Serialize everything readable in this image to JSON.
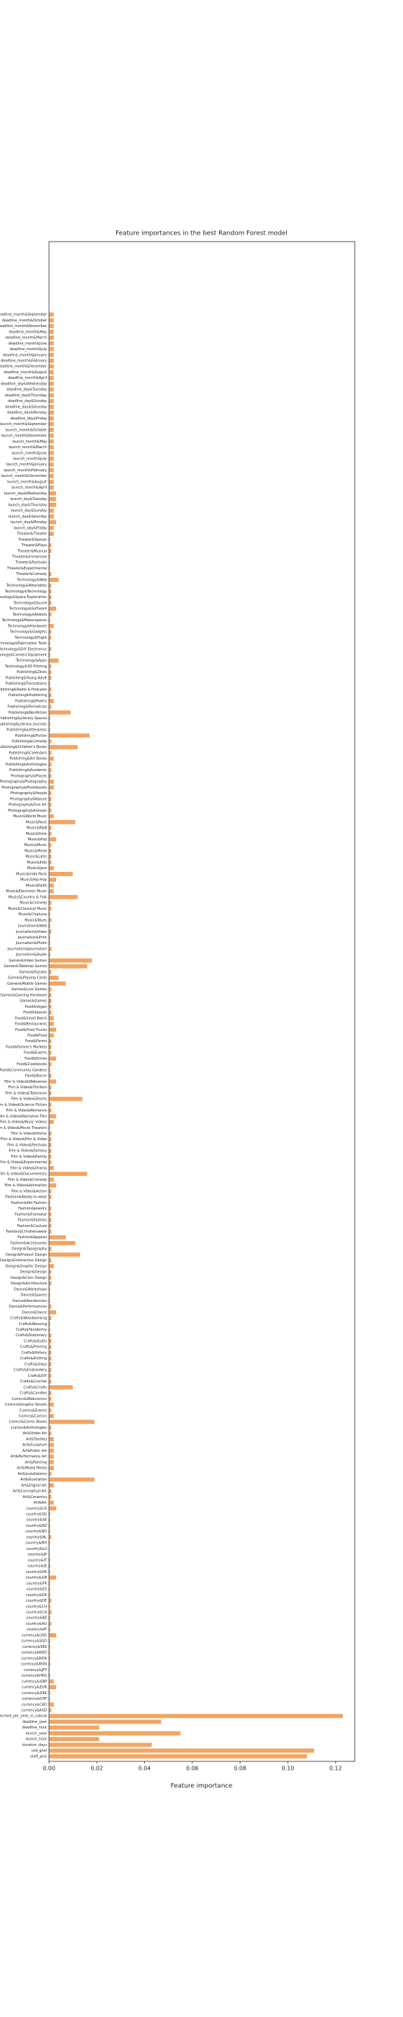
{
  "chart_data": {
    "type": "barh",
    "title": "Feature importances in the best Random Forest model",
    "xlabel": "Feature importance",
    "color": "#f4a460",
    "xlim": [
      0,
      0.128
    ],
    "xticks": [
      {
        "value": 0,
        "label": "0.00"
      },
      0.02,
      0.04,
      0.06,
      0.08,
      {
        "value": 0.1,
        "label": "0.10"
      },
      0.12
    ],
    "categories": [
      "deadline_month&September",
      "deadline_month&October",
      "deadline_month&November",
      "deadline_month&May",
      "deadline_month&March",
      "deadline_month&June",
      "deadline_month&July",
      "deadline_month&January",
      "deadline_month&February",
      "deadline_month&December",
      "deadline_month&August",
      "deadline_month&April",
      "deadline_day&Wednesday",
      "deadline_day&Tuesday",
      "deadline_day&Thursday",
      "deadline_day&Sunday",
      "deadline_day&Saturday",
      "deadline_day&Monday",
      "deadline_day&Friday",
      "launch_month&September",
      "launch_month&October",
      "launch_month&November",
      "launch_month&May",
      "launch_month&March",
      "launch_month&June",
      "launch_month&July",
      "launch_month&January",
      "launch_month&February",
      "launch_month&December",
      "launch_month&August",
      "launch_month&April",
      "launch_day&Wednesday",
      "launch_day&Tuesday",
      "launch_day&Thursday",
      "launch_day&Sunday",
      "launch_day&Saturday",
      "launch_day&Monday",
      "launch_day&Friday",
      "Theater&Theater",
      "Theater&Spaces",
      "Theater&Plays",
      "Theater&Musical",
      "Theater&Immersive",
      "Theater&Festivals",
      "Theater&Experimental",
      "Theater&Comedy",
      "Technology&Web",
      "Technology&Wearables",
      "Technology&Technology",
      "Technology&Space Exploration",
      "Technology&Sound",
      "Technology&Software",
      "Technology&Robots",
      "Technology&Makerspaces",
      "Technology&Hardware",
      "Technology&Gadgets",
      "Technology&Flight",
      "Technology&Fabrication Tools",
      "Technology&DIY Electronics",
      "Technology&Camera Equipment",
      "Technology&Apps",
      "Technology&3D Printing",
      "Publishing&Zines",
      "Publishing&Young Adult",
      "Publishing&Translations",
      "Publishing&Radio & Podcasts",
      "Publishing&Publishing",
      "Publishing&Poetry",
      "Publishing&Periodicals",
      "Publishing&Nonfiction",
      "Publishing&Literary Spaces",
      "Publishing&Literary Journals",
      "Publishing&Letterpress",
      "Publishing&Fiction",
      "Publishing&Comedy",
      "Publishing&Children's Books",
      "Publishing&Calendars",
      "Publishing&Art Books",
      "Publishing&Anthologies",
      "Publishing&Academic",
      "Photography&Places",
      "Photography&Photography",
      "Photography&Photobooks",
      "Photography&People",
      "Photography&Nature",
      "Photography&Fine Art",
      "Photography&Animals",
      "Music&World Music",
      "Music&Rock",
      "Music&R&B",
      "Music&Punk",
      "Music&Pop",
      "Music&Music",
      "Music&Metal",
      "Music&Latin",
      "Music&Kids",
      "Music&Jazz",
      "Music&Indie Rock",
      "Music&Hip-Hop",
      "Music&Faith",
      "Music&Electronic Music",
      "Music&Country & Folk",
      "Music&Comedy",
      "Music&Classical Music",
      "Music&Chiptune",
      "Music&Blues",
      "Journalism&Web",
      "Journalism&Video",
      "Journalism&Print",
      "Journalism&Photo",
      "Journalism&Journalism",
      "Journalism&Audio",
      "Games&Video Games",
      "Games&Tabletop Games",
      "Games&Puzzles",
      "Games&Playing Cards",
      "Games&Mobile Games",
      "Games&Live Games",
      "Games&Gaming Hardware",
      "Games&Games",
      "Food&Vegan",
      "Food&Spaces",
      "Food&Small Batch",
      "Food&Restaurants",
      "Food&Food Trucks",
      "Food&Food",
      "Food&Farms",
      "Food&Farmer's Markets",
      "Food&Events",
      "Food&Drinks",
      "Food&Cookbooks",
      "Food&Community Gardens",
      "Food&Bacon",
      "Film & Video&Webseries",
      "Film & Video&Thrillers",
      "Film & Video&Television",
      "Film & Video&Shorts",
      "Film & Video&Science Fiction",
      "Film & Video&Romance",
      "Film & Video&Narrative Film",
      "Film & Video&Music Videos",
      "Film & Video&Movie Theaters",
      "Film & Video&Horror",
      "Film & Video&Film & Video",
      "Film & Video&Festivals",
      "Film & Video&Fantasy",
      "Film & Video&Family",
      "Film & Video&Experimental",
      "Film & Video&Drama",
      "Film & Video&Documentary",
      "Film & Video&Comedy",
      "Film & Video&Animation",
      "Film & Video&Action",
      "Fashion&Ready-to-wear",
      "Fashion&Pet Fashion",
      "Fashion&Jewelry",
      "Fashion&Footwear",
      "Fashion&Fashion",
      "Fashion&Couture",
      "Fashion&Childrenswear",
      "Fashion&Apparel",
      "Fashion&Accessories",
      "Design&Typography",
      "Design&Product Design",
      "Design&Interactive Design",
      "Design&Graphic Design",
      "Design&Design",
      "Design&Civic Design",
      "Design&Architecture",
      "Dance&Workshops",
      "Dance&Spaces",
      "Dance&Residencies",
      "Dance&Performances",
      "Dance&Dance",
      "Crafts&Woodworking",
      "Crafts&Weaving",
      "Crafts&Taxidermy",
      "Crafts&Stationery",
      "Crafts&Quilts",
      "Crafts&Printing",
      "Crafts&Pottery",
      "Crafts&Knitting",
      "Crafts&Glass",
      "Crafts&Embroidery",
      "Crafts&DIY",
      "Crafts&Crochet",
      "Crafts&Crafts",
      "Crafts&Candles",
      "Comics&Webcomics",
      "Comics&Graphic Novels",
      "Comics&Events",
      "Comics&Comics",
      "Comics&Comic Books",
      "Comics&Anthologies",
      "Art&Video Art",
      "Art&Textiles",
      "Art&Sculpture",
      "Art&Public Art",
      "Art&Performance Art",
      "Art&Painting",
      "Art&Mixed Media",
      "Art&Installations",
      "Art&Illustration",
      "Art&Digital Art",
      "Art&Conceptual Art",
      "Art&Ceramics",
      "Art&Art",
      "country&US",
      "country&SG",
      "country&SE",
      "country&NZ",
      "country&NO",
      "country&NL",
      "country&MX",
      "country&LU",
      "country&JP",
      "country&IT",
      "country&IE",
      "country&HK",
      "country&GB",
      "country&FR",
      "country&ES",
      "country&DK",
      "country&DE",
      "country&CH",
      "country&CA",
      "country&BE",
      "country&AU",
      "country&AT",
      "currency&USD",
      "currency&SGD",
      "currency&SEK",
      "currency&NZD",
      "currency&NOK",
      "currency&MXN",
      "currency&JPY",
      "currency&HKD",
      "currency&GBP",
      "currency&EUR",
      "currency&DKK",
      "currency&CHF",
      "currency&CAD",
      "currency&AUD",
      "launched_per_year_in_subcat",
      "deadline_year",
      "deadline_hour",
      "launch_year",
      "launch_hour",
      "duration_days",
      "usd_goal",
      "staff_pick"
    ],
    "values": [
      0.002,
      0.002,
      0.002,
      0.002,
      0.002,
      0.002,
      0.002,
      0.002,
      0.002,
      0.002,
      0.002,
      0.002,
      0.002,
      0.002,
      0.002,
      0.002,
      0.002,
      0.002,
      0.002,
      0.002,
      0.002,
      0.002,
      0.002,
      0.002,
      0.002,
      0.002,
      0.002,
      0.002,
      0.002,
      0.002,
      0.002,
      0.003,
      0.003,
      0.003,
      0.002,
      0.002,
      0.003,
      0.002,
      0.002,
      0.0005,
      0.001,
      0.001,
      0.0005,
      0.0005,
      0.0005,
      0.001,
      0.004,
      0.001,
      0.001,
      0.001,
      0.001,
      0.003,
      0.001,
      0.0005,
      0.002,
      0.001,
      0.001,
      0.0005,
      0.001,
      0.0005,
      0.004,
      0.001,
      0.001,
      0.001,
      0.0005,
      0.001,
      0.001,
      0.002,
      0.001,
      0.009,
      0.0005,
      0.0005,
      0.0005,
      0.017,
      0.001,
      0.012,
      0.001,
      0.002,
      0.001,
      0.001,
      0.001,
      0.002,
      0.002,
      0.001,
      0.001,
      0.001,
      0.001,
      0.002,
      0.011,
      0.001,
      0.001,
      0.003,
      0.001,
      0.001,
      0.001,
      0.001,
      0.002,
      0.01,
      0.003,
      0.002,
      0.002,
      0.012,
      0.001,
      0.001,
      0.0005,
      0.001,
      0.0005,
      0.001,
      0.0005,
      0.0005,
      0.001,
      0.0005,
      0.018,
      0.016,
      0.001,
      0.004,
      0.007,
      0.001,
      0.001,
      0.001,
      0.001,
      0.001,
      0.002,
      0.002,
      0.003,
      0.002,
      0.001,
      0.001,
      0.001,
      0.003,
      0.001,
      0.0005,
      0.001,
      0.003,
      0.001,
      0.001,
      0.014,
      0.001,
      0.001,
      0.003,
      0.002,
      0.0005,
      0.001,
      0.001,
      0.001,
      0.001,
      0.001,
      0.001,
      0.002,
      0.016,
      0.002,
      0.003,
      0.001,
      0.001,
      0.0005,
      0.001,
      0.001,
      0.001,
      0.001,
      0.001,
      0.007,
      0.011,
      0.001,
      0.013,
      0.001,
      0.002,
      0.001,
      0.001,
      0.001,
      0.0005,
      0.0005,
      0.0005,
      0.001,
      0.003,
      0.001,
      0.0005,
      0.0005,
      0.001,
      0.001,
      0.001,
      0.001,
      0.001,
      0.001,
      0.001,
      0.001,
      0.001,
      0.01,
      0.001,
      0.001,
      0.002,
      0.001,
      0.002,
      0.019,
      0.001,
      0.001,
      0.002,
      0.002,
      0.002,
      0.002,
      0.002,
      0.002,
      0.001,
      0.019,
      0.002,
      0.001,
      0.001,
      0.002,
      0.003,
      0.0005,
      0.0005,
      0.0005,
      0.0005,
      0.001,
      0.0005,
      0.0003,
      0.0003,
      0.0005,
      0.0005,
      0.0005,
      0.003,
      0.0005,
      0.0005,
      0.0005,
      0.001,
      0.0005,
      0.001,
      0.0005,
      0.001,
      0.0005,
      0.003,
      0.0005,
      0.0005,
      0.0005,
      0.0005,
      0.0005,
      0.0003,
      0.0005,
      0.002,
      0.003,
      0.0005,
      0.0005,
      0.002,
      0.001,
      0.123,
      0.047,
      0.021,
      0.055,
      0.021,
      0.043,
      0.111,
      0.108
    ]
  }
}
